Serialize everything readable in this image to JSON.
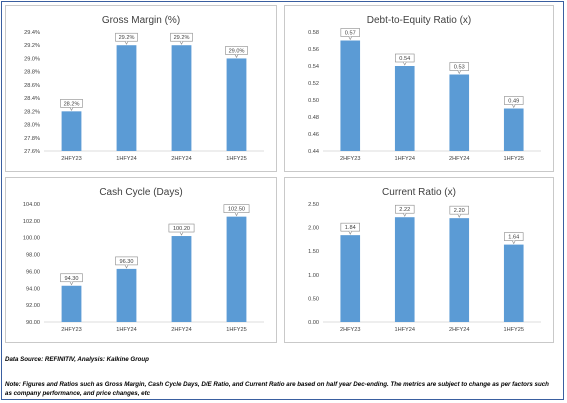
{
  "chart_data": [
    {
      "type": "bar",
      "title": "Gross Margin (%)",
      "categories": [
        "2HFY23",
        "1HFY24",
        "2HFY24",
        "1HFY25"
      ],
      "values": [
        28.2,
        29.2,
        29.2,
        29.0
      ],
      "data_labels": [
        "28.2%",
        "29.2%",
        "29.2%",
        "29.0%"
      ],
      "ylim": [
        27.6,
        29.4
      ],
      "yticks": [
        27.6,
        27.8,
        28.0,
        28.2,
        28.4,
        28.6,
        28.8,
        29.0,
        29.2,
        29.4
      ],
      "ytick_labels": [
        "27.6%",
        "27.8%",
        "28.0%",
        "28.2%",
        "28.4%",
        "28.6%",
        "28.8%",
        "29.0%",
        "29.2%",
        "29.4%"
      ],
      "grid": false,
      "bar_color": "#5b9bd5"
    },
    {
      "type": "bar",
      "title": "Debt-to-Equity Ratio (x)",
      "categories": [
        "2HFY23",
        "1HFY24",
        "2HFY24",
        "1HFY25"
      ],
      "values": [
        0.57,
        0.54,
        0.53,
        0.49
      ],
      "data_labels": [
        "0.57",
        "0.54",
        "0.53",
        "0.49"
      ],
      "ylim": [
        0.44,
        0.58
      ],
      "yticks": [
        0.44,
        0.46,
        0.48,
        0.5,
        0.52,
        0.54,
        0.56,
        0.58
      ],
      "ytick_labels": [
        "0.44",
        "0.46",
        "0.48",
        "0.50",
        "0.52",
        "0.54",
        "0.56",
        "0.58"
      ],
      "grid": false,
      "bar_color": "#5b9bd5"
    },
    {
      "type": "bar",
      "title": "Cash Cycle (Days)",
      "categories": [
        "2HFY23",
        "1HFY24",
        "2HFY24",
        "1HFY25"
      ],
      "values": [
        94.3,
        96.3,
        100.2,
        102.5
      ],
      "data_labels": [
        "94.30",
        "96.30",
        "100.20",
        "102.50"
      ],
      "ylim": [
        90.0,
        104.0
      ],
      "yticks": [
        90.0,
        92.0,
        94.0,
        96.0,
        98.0,
        100.0,
        102.0,
        104.0
      ],
      "ytick_labels": [
        "90.00",
        "92.00",
        "94.00",
        "96.00",
        "98.00",
        "100.00",
        "102.00",
        "104.00"
      ],
      "grid": false,
      "bar_color": "#5b9bd5"
    },
    {
      "type": "bar",
      "title": "Current Ratio (x)",
      "categories": [
        "2HFY23",
        "1HFY24",
        "2HFY24",
        "1HFY25"
      ],
      "values": [
        1.84,
        2.22,
        2.2,
        1.64
      ],
      "data_labels": [
        "1.84",
        "2.22",
        "2.20",
        "1.64"
      ],
      "ylim": [
        0.0,
        2.5
      ],
      "yticks": [
        0.0,
        0.5,
        1.0,
        1.5,
        2.0,
        2.5
      ],
      "ytick_labels": [
        "0.00",
        "0.50",
        "1.00",
        "1.50",
        "2.00",
        "2.50"
      ],
      "grid": false,
      "bar_color": "#5b9bd5"
    }
  ],
  "footer": {
    "source": "Data Source: REFINITIV, Analysis: Kalkine Group",
    "note": "Note: Figures and Ratios such as Gross Margin, Cash Cycle Days, D/E Ratio, and Current Ratio are based on half  year Dec-ending. The metrics are subject to change as per factors such as company performance, and price changes, etc"
  }
}
